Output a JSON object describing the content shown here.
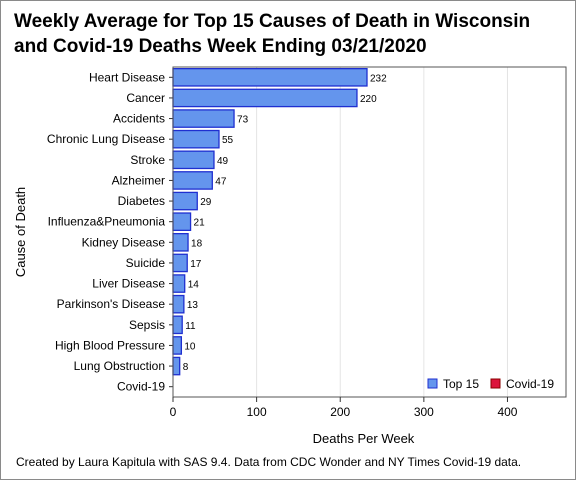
{
  "chart_data": {
    "type": "bar",
    "orientation": "horizontal",
    "title_line1": "Weekly Average for Top 15 Causes of Death in Wisconsin",
    "title_line2": "and Covid-19 Deaths Week Ending 03/21/2020",
    "xlabel": "Deaths Per Week",
    "ylabel": "Cause of Death",
    "xlim": [
      0,
      470
    ],
    "xticks": [
      0,
      100,
      200,
      300,
      400
    ],
    "grid": true,
    "legend_position": "bottom-right",
    "categories": [
      "Heart Disease",
      "Cancer",
      "Accidents",
      "Chronic Lung Disease",
      "Stroke",
      "Alzheimer",
      "Diabetes",
      "Influenza&Pneumonia",
      "Kidney Disease",
      "Suicide",
      "Liver Disease",
      "Parkinson's Disease",
      "Sepsis",
      "High Blood Pressure",
      "Lung Obstruction",
      "Covid-19"
    ],
    "series": [
      {
        "name": "Top 15",
        "color": "#6495ed",
        "edge_color": "#1f2fd0",
        "values": [
          232,
          220,
          73,
          55,
          49,
          47,
          29,
          21,
          18,
          17,
          14,
          13,
          11,
          10,
          8,
          null
        ]
      },
      {
        "name": "Covid-19",
        "color": "#dc143c",
        "edge_color": "#8b0000",
        "values": [
          null,
          null,
          null,
          null,
          null,
          null,
          null,
          null,
          null,
          null,
          null,
          null,
          null,
          null,
          null,
          null
        ]
      }
    ]
  },
  "footnote": "Created by Laura Kapitula with SAS 9.4. Data from CDC Wonder and NY Times Covid-19 data."
}
